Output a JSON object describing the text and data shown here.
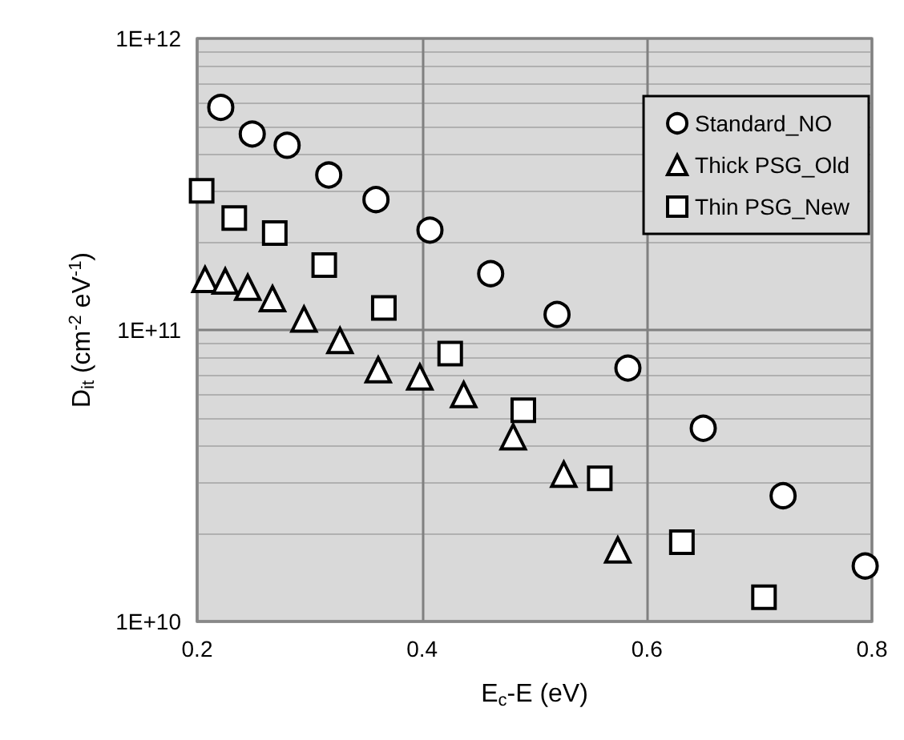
{
  "chart_data": {
    "type": "scatter",
    "xlabel": "E$_{c}$-E (eV)",
    "ylabel": "D$_{it}$ (cm$^{-2}$ eV$^{-1}$)",
    "log": "y",
    "grid": true,
    "legend": "top right",
    "xlim": [
      0.2,
      0.8
    ],
    "xticks": [
      0.2,
      0.4,
      0.6,
      0.8
    ],
    "ylim": [
      10000000000.0,
      1000000000000.0
    ],
    "yticks": [
      {
        "value": 10000000000.0,
        "label": "1E+10"
      },
      {
        "value": 100000000000.0,
        "label": "1E+11"
      },
      {
        "value": 1000000000000.0,
        "label": "1E+12"
      }
    ],
    "series": [
      {
        "name": "Standard_NO",
        "color": "#ffffff",
        "marker": "circle",
        "x": [
          0.221,
          0.249,
          0.28,
          0.317,
          0.359,
          0.407,
          0.461,
          0.52,
          0.583,
          0.65,
          0.721,
          0.794
        ],
        "values": [
          580000000000.0,
          470000000000.0,
          430000000000.0,
          340000000000.0,
          280000000000.0,
          220000000000.0,
          156000000000.0,
          113000000000.0,
          74000000000.0,
          46000000000.0,
          27000000000.0,
          15500000000.0
        ]
      },
      {
        "name": "Thick PSG_Old",
        "color": "#ffffff",
        "marker": "triangle",
        "x": [
          0.207,
          0.225,
          0.245,
          0.267,
          0.295,
          0.327,
          0.361,
          0.398,
          0.437,
          0.481,
          0.526,
          0.574
        ],
        "values": [
          149000000000.0,
          147000000000.0,
          140000000000.0,
          128000000000.0,
          109000000000.0,
          92000000000.0,
          73000000000.0,
          69000000000.0,
          60000000000.0,
          43000000000.0,
          32000000000.0,
          17600000000.0
        ]
      },
      {
        "name": "Thin PSG_New",
        "color": "#ffffff",
        "marker": "square",
        "x": [
          0.204,
          0.233,
          0.269,
          0.313,
          0.366,
          0.425,
          0.49,
          0.558,
          0.631,
          0.704
        ],
        "values": [
          300000000000.0,
          242000000000.0,
          215000000000.0,
          167000000000.0,
          119000000000.0,
          83000000000.0,
          53000000000.0,
          31000000000.0,
          18700000000.0,
          12100000000.0
        ]
      }
    ]
  }
}
